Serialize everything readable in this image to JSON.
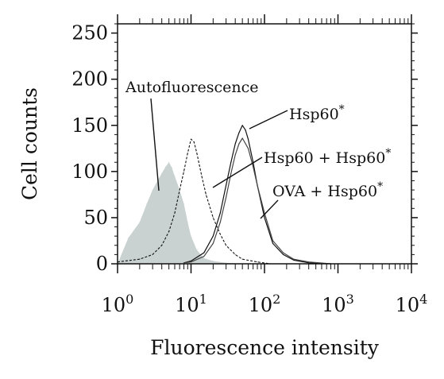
{
  "chart_data": {
    "type": "line",
    "title": "",
    "xlabel": "Fluorescence intensity",
    "ylabel": "Cell counts",
    "x_scale": "log",
    "xlim": [
      1,
      10000
    ],
    "ylim": [
      0,
      260
    ],
    "x_ticks": [
      {
        "value": 1,
        "base": "10",
        "exp": "0"
      },
      {
        "value": 10,
        "base": "10",
        "exp": "1"
      },
      {
        "value": 100,
        "base": "10",
        "exp": "2"
      },
      {
        "value": 1000,
        "base": "10",
        "exp": "3"
      },
      {
        "value": 10000,
        "base": "10",
        "exp": "4"
      }
    ],
    "y_ticks": [
      0,
      50,
      100,
      150,
      200,
      250
    ],
    "grid": false,
    "series": [
      {
        "name": "Autofluorescence",
        "style": "filled",
        "color": "#c9d1d1",
        "x": [
          1.0,
          1.4,
          2.0,
          2.5,
          3.0,
          3.5,
          4.0,
          4.5,
          5.0,
          5.5,
          6.0,
          7.0,
          8.0,
          9.0,
          10.0,
          12.0,
          15.0,
          20.0,
          30.0,
          50.0
        ],
        "y": [
          0,
          28,
          45,
          65,
          80,
          90,
          98,
          105,
          110,
          104,
          95,
          80,
          65,
          45,
          30,
          15,
          6,
          3,
          1,
          0
        ]
      },
      {
        "name": "",
        "style": "dashed",
        "color": "#111111",
        "x": [
          1.0,
          2.0,
          3.0,
          4.0,
          5.0,
          6.0,
          7.0,
          8.0,
          9.0,
          10.0,
          11.0,
          12.0,
          14.0,
          16.0,
          20.0,
          25.0,
          30.0,
          40.0,
          50.0,
          80.0,
          120.0
        ],
        "y": [
          2,
          5,
          10,
          20,
          35,
          55,
          80,
          100,
          120,
          135,
          132,
          120,
          95,
          75,
          50,
          32,
          20,
          10,
          5,
          2,
          0
        ]
      },
      {
        "name": "Hsp60 + Hsp60*",
        "style": "solid",
        "color": "#111111",
        "x": [
          8.0,
          10.0,
          15.0,
          20.0,
          25.0,
          30.0,
          35.0,
          40.0,
          45.0,
          50.0,
          55.0,
          60.0,
          70.0,
          80.0,
          100.0,
          130.0,
          180.0,
          250.0,
          400.0,
          800.0
        ],
        "y": [
          1,
          3,
          12,
          30,
          55,
          85,
          110,
          130,
          142,
          150,
          145,
          135,
          110,
          85,
          50,
          22,
          10,
          4,
          1,
          0
        ]
      },
      {
        "name": "OVA + Hsp60*",
        "style": "solid",
        "color": "#444444",
        "x": [
          8.0,
          10.0,
          15.0,
          20.0,
          25.0,
          30.0,
          35.0,
          40.0,
          45.0,
          50.0,
          60.0,
          70.0,
          80.0,
          100.0,
          130.0,
          180.0,
          250.0,
          400.0,
          800.0
        ],
        "y": [
          1,
          2,
          8,
          22,
          45,
          72,
          98,
          118,
          130,
          136,
          125,
          105,
          85,
          55,
          25,
          12,
          5,
          2,
          0
        ]
      }
    ],
    "annotations": [
      {
        "id": "autofluorescence",
        "base": "Autofluorescence",
        "sup": ""
      },
      {
        "id": "hsp60",
        "base": "Hsp60",
        "sup": "*"
      },
      {
        "id": "hsp60-hsp60",
        "base": "Hsp60 + Hsp60",
        "sup": "*"
      },
      {
        "id": "ova-hsp60",
        "base": "OVA  + Hsp60",
        "sup": "*"
      }
    ]
  }
}
